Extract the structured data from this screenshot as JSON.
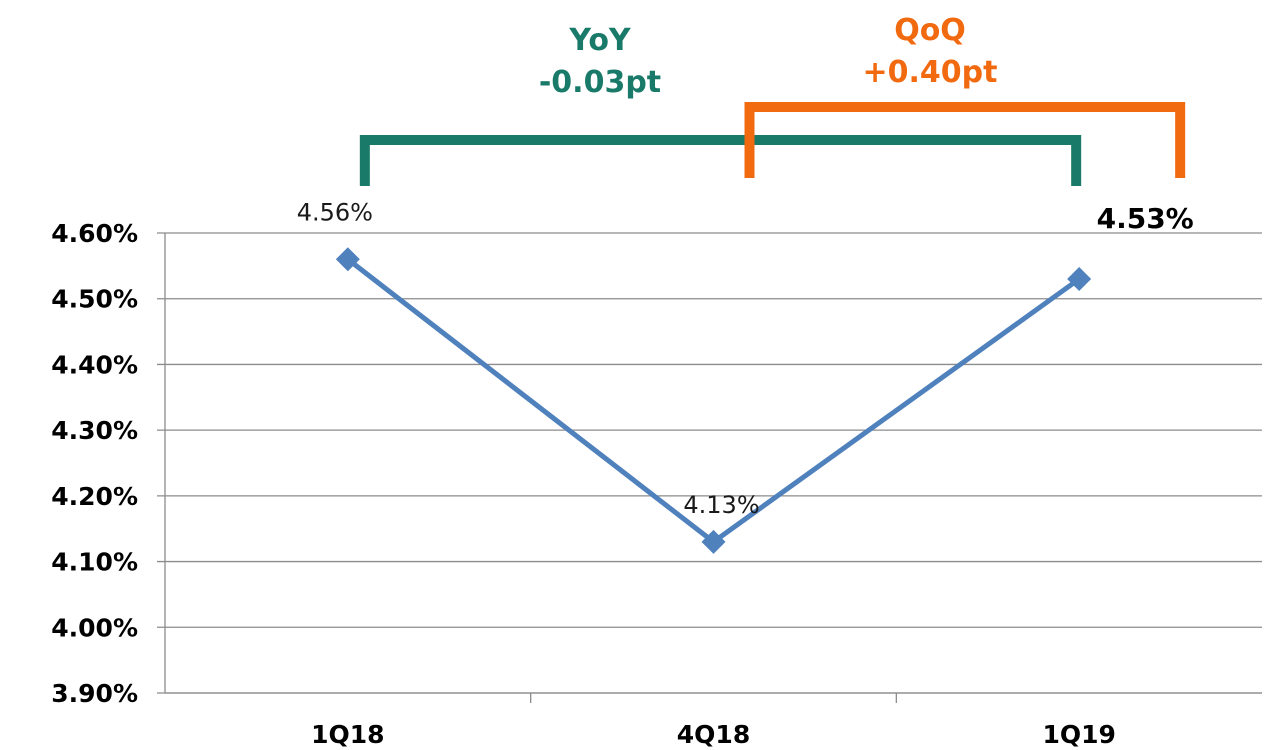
{
  "chart_data": {
    "type": "line",
    "categories": [
      "1Q18",
      "4Q18",
      "1Q19"
    ],
    "series": [
      {
        "values": [
          4.56,
          4.13,
          4.53
        ],
        "color": "#4f81bd"
      }
    ],
    "data_labels": [
      "4.56%",
      "4.13%",
      "4.53%"
    ],
    "y_ticks": [
      "4.60%",
      "4.50%",
      "4.40%",
      "4.30%",
      "4.20%",
      "4.10%",
      "4.00%",
      "3.90%"
    ],
    "ylim": [
      3.9,
      4.6
    ],
    "grid": true,
    "annotations": [
      {
        "label": "YoY",
        "value": "-0.03pt",
        "color": "#1a7a6a",
        "from": "1Q18",
        "to": "1Q19"
      },
      {
        "label": "QoQ",
        "value": "+0.40pt",
        "color": "#f26a0f",
        "from": "4Q18",
        "to": "1Q19"
      }
    ]
  }
}
